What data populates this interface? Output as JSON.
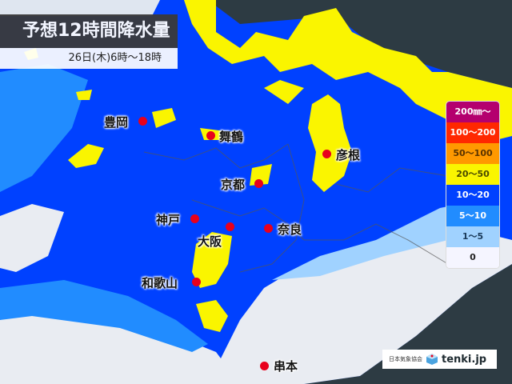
{
  "header": {
    "title": "予想12時間降水量",
    "subtitle": "26日(木)6時～18時"
  },
  "cities": [
    {
      "name": "豊岡"
    },
    {
      "name": "舞鶴"
    },
    {
      "name": "京都"
    },
    {
      "name": "彦根"
    },
    {
      "name": "神戸"
    },
    {
      "name": "大阪"
    },
    {
      "name": "奈良"
    },
    {
      "name": "和歌山"
    },
    {
      "name": "串本"
    }
  ],
  "legend": {
    "items": [
      {
        "label": "200㎜～",
        "color": "#b4006e",
        "text": "#ffffff"
      },
      {
        "label": "100～200",
        "color": "#ff2800",
        "text": "#ffffff"
      },
      {
        "label": "50～100",
        "color": "#ff9900",
        "text": "#5a3300"
      },
      {
        "label": "20～50",
        "color": "#faf500",
        "text": "#4a4a00"
      },
      {
        "label": "10～20",
        "color": "#0041ff",
        "text": "#ffffff"
      },
      {
        "label": "5～10",
        "color": "#218cff",
        "text": "#ffffff"
      },
      {
        "label": "1～5",
        "color": "#a0d2ff",
        "text": "#1a3a5a"
      },
      {
        "label": "0",
        "color": "#f5f5ff",
        "text": "#222222"
      }
    ]
  },
  "credit": {
    "org": "日本気象協会",
    "brand": "tenki.jp"
  },
  "colors": {
    "sea": "#2d3b43",
    "land_dry": "#e9ecf2"
  }
}
